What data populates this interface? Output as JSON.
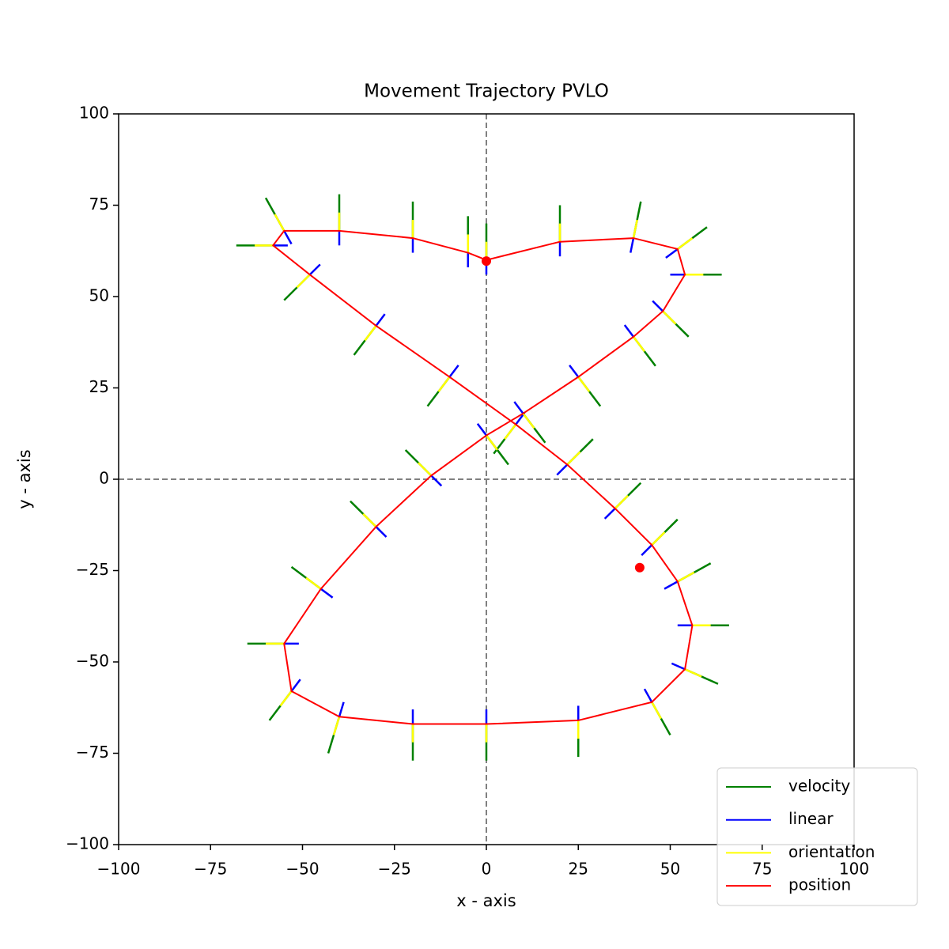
{
  "chart_data": {
    "type": "quiver",
    "title": "Movement Trajectory PVLO",
    "x_label": "x - axis",
    "y_label": "y - axis",
    "xlim": [
      -100,
      100
    ],
    "ylim": [
      -100,
      100
    ],
    "xticks": [
      {
        "value": -100,
        "label": "−100"
      },
      {
        "value": -75,
        "label": "−75"
      },
      {
        "value": -50,
        "label": "−50"
      },
      {
        "value": -25,
        "label": "−25"
      },
      0,
      25,
      50,
      75,
      100
    ],
    "yticks": [
      {
        "value": -100,
        "label": "−100"
      },
      {
        "value": -75,
        "label": "−75"
      },
      {
        "value": -50,
        "label": "−50"
      },
      {
        "value": -25,
        "label": "−25"
      },
      0,
      25,
      50,
      75,
      100
    ],
    "axhline": 0,
    "axvline": 0,
    "legend": "lower right",
    "series": [
      {
        "name": "velocity",
        "color": "green",
        "u": [
          0,
          0,
          2,
          8,
          10,
          7,
          6,
          6,
          6,
          6,
          -7,
          -7,
          -8,
          -10,
          -6,
          -3,
          0,
          0,
          0,
          5,
          9,
          10,
          9,
          7,
          7,
          7,
          -6,
          -6,
          -6,
          -7,
          -10,
          -5,
          0,
          0,
          0
        ],
        "v": [
          10,
          10,
          10,
          6,
          0,
          -7,
          -8,
          -8,
          -8,
          -8,
          7,
          7,
          6,
          0,
          -8,
          -10,
          -10,
          -10,
          -10,
          -9,
          -4,
          0,
          5,
          7,
          7,
          7,
          -8,
          -8,
          -8,
          -7,
          0,
          9,
          10,
          10,
          10
        ]
      },
      {
        "name": "linear",
        "color": "blue",
        "u": [
          0,
          0,
          -0.8,
          -3.2,
          -4,
          -2.8,
          -2.4,
          -2.4,
          -2.4,
          -2.4,
          2.8,
          2.8,
          3.2,
          4,
          2.4,
          1.2,
          0,
          0,
          0,
          -2,
          -3.6,
          -4,
          -3.6,
          -2.8,
          -2.8,
          -2.8,
          2.4,
          2.4,
          2.4,
          2.8,
          4,
          2,
          0,
          0,
          0
        ],
        "v": [
          -4,
          -4,
          -4,
          -2.4,
          0,
          2.8,
          3.2,
          3.2,
          3.2,
          3.2,
          -2.8,
          -2.8,
          -2.4,
          0,
          3.2,
          4,
          4,
          4,
          4,
          3.6,
          1.6,
          0,
          -2,
          -2.8,
          -2.8,
          -2.8,
          3.2,
          3.2,
          3.2,
          2.8,
          0,
          -3.6,
          -4,
          -4,
          -4
        ]
      },
      {
        "name": "orientation",
        "color": "yellow",
        "u": [
          0,
          0,
          1,
          4,
          5,
          3.5,
          3,
          3,
          3,
          3,
          -3.5,
          -3.5,
          -4,
          -5,
          -3,
          -1.5,
          0,
          0,
          0,
          2.5,
          4.5,
          5,
          4.5,
          3.5,
          3.5,
          3.5,
          -3,
          -3,
          -3,
          -3.5,
          -5,
          -2.5,
          0,
          0,
          0
        ],
        "v": [
          5,
          5,
          5,
          3,
          0,
          -3.5,
          -4,
          -4,
          -4,
          -4,
          3.5,
          3.5,
          3,
          0,
          -4,
          -5,
          -5,
          -5,
          -5,
          -4.5,
          -2,
          0,
          2.5,
          3.5,
          3.5,
          3.5,
          -4,
          -4,
          -4,
          -3.5,
          0,
          4.5,
          5,
          5,
          5
        ]
      },
      {
        "name": "position",
        "color": "red",
        "x": [
          0,
          20,
          40,
          52,
          54,
          48,
          40,
          25,
          10,
          0,
          -15,
          -30,
          -45,
          -55,
          -53,
          -40,
          -20,
          0,
          25,
          45,
          54,
          56,
          52,
          45,
          35,
          22,
          8,
          -10,
          -30,
          -48,
          -58,
          -55,
          -40,
          -20,
          -5
        ],
        "y": [
          60,
          65,
          66,
          63,
          56,
          46,
          39,
          28,
          18,
          12,
          1,
          -13,
          -30,
          -45,
          -58,
          -65,
          -67,
          -67,
          -66,
          -61,
          -52,
          -40,
          -28,
          -18,
          -8,
          4,
          15,
          28,
          42,
          56,
          64,
          68,
          68,
          66,
          62
        ],
        "points": {
          "x": [
            0,
            41.7
          ],
          "y": [
            59.7,
            -24.2
          ]
        }
      }
    ]
  }
}
